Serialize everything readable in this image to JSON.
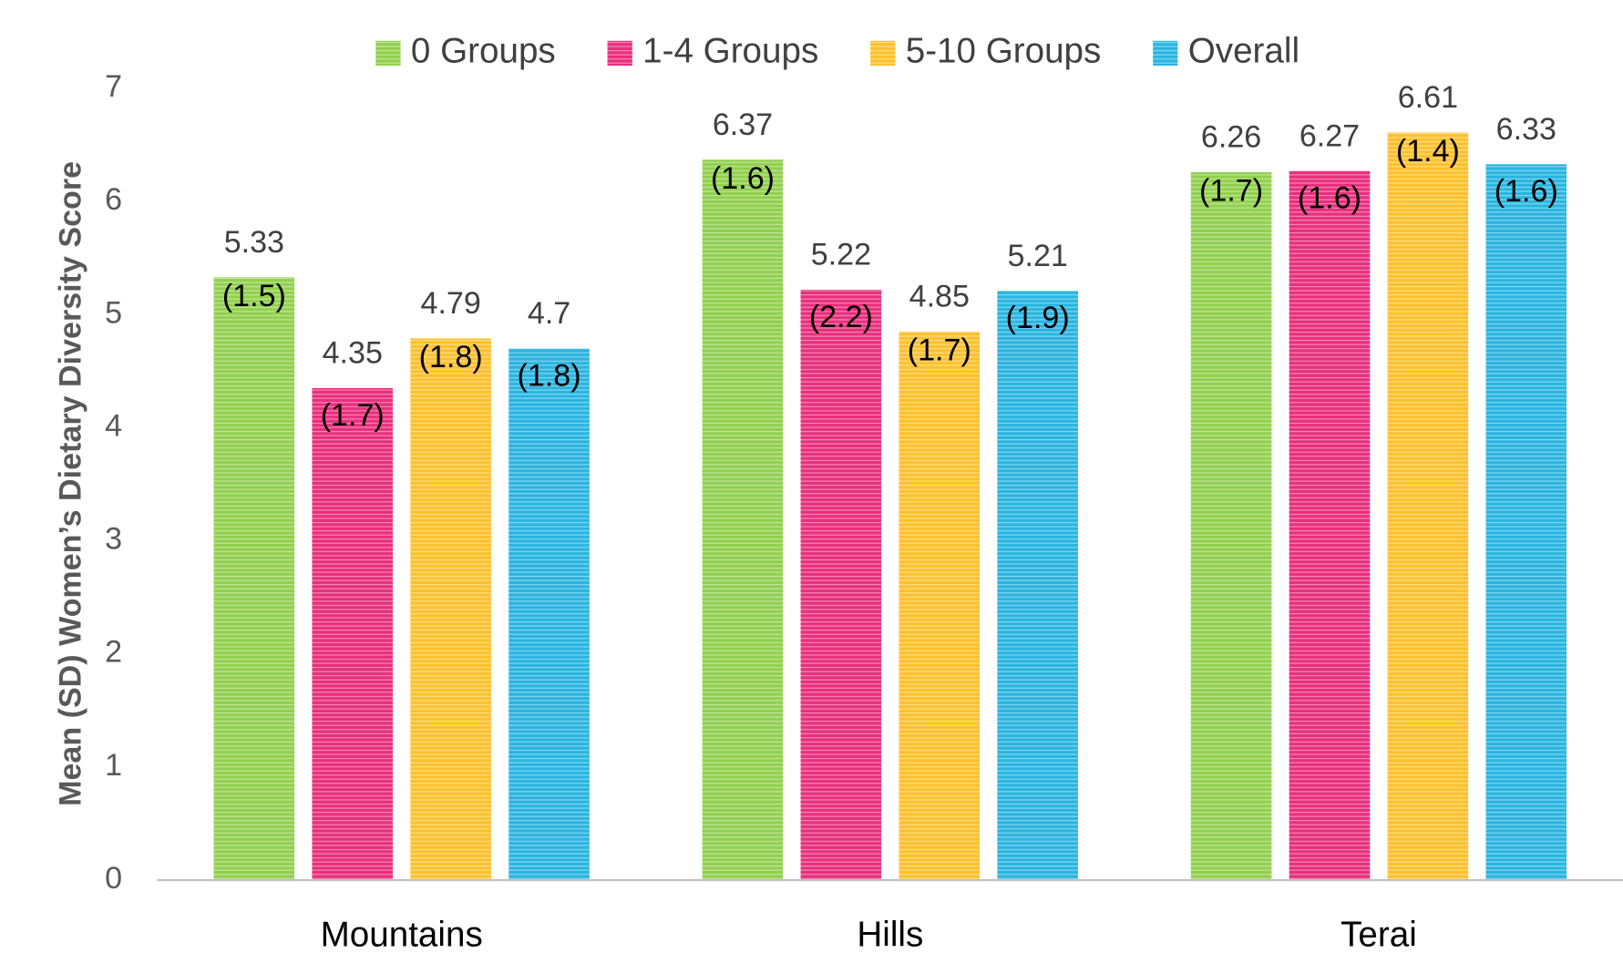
{
  "chart_data": {
    "type": "bar",
    "y_label": "Mean (SD) Women’s Dietary Diversity Score",
    "categories": [
      "Mountains",
      "Hills",
      "Terai"
    ],
    "series": [
      {
        "name": "0 Groups",
        "color": "#92d050",
        "values": [
          5.33,
          6.37,
          6.26
        ],
        "sd_labels": [
          "(1.5)",
          "(1.6)",
          "(1.7)"
        ]
      },
      {
        "name": "1-4 Groups",
        "color": "#e8307c",
        "values": [
          4.35,
          5.22,
          6.27
        ],
        "sd_labels": [
          "(1.7)",
          "(2.2)",
          "(1.6)"
        ]
      },
      {
        "name": "5-10 Groups",
        "color": "#fcc12e",
        "values": [
          4.79,
          4.85,
          6.61
        ],
        "sd_labels": [
          "(1.8)",
          "(1.7)",
          "(1.4)"
        ]
      },
      {
        "name": "Overall",
        "color": "#2bb5e0",
        "values": [
          4.7,
          5.21,
          6.33
        ],
        "sd_labels": [
          "(1.8)",
          "(1.9)",
          "(1.6)"
        ]
      }
    ],
    "ylim": [
      0,
      7
    ],
    "yticks": [
      0,
      1,
      2,
      3,
      4,
      5,
      6,
      7
    ],
    "grid": false,
    "legend": "top"
  }
}
